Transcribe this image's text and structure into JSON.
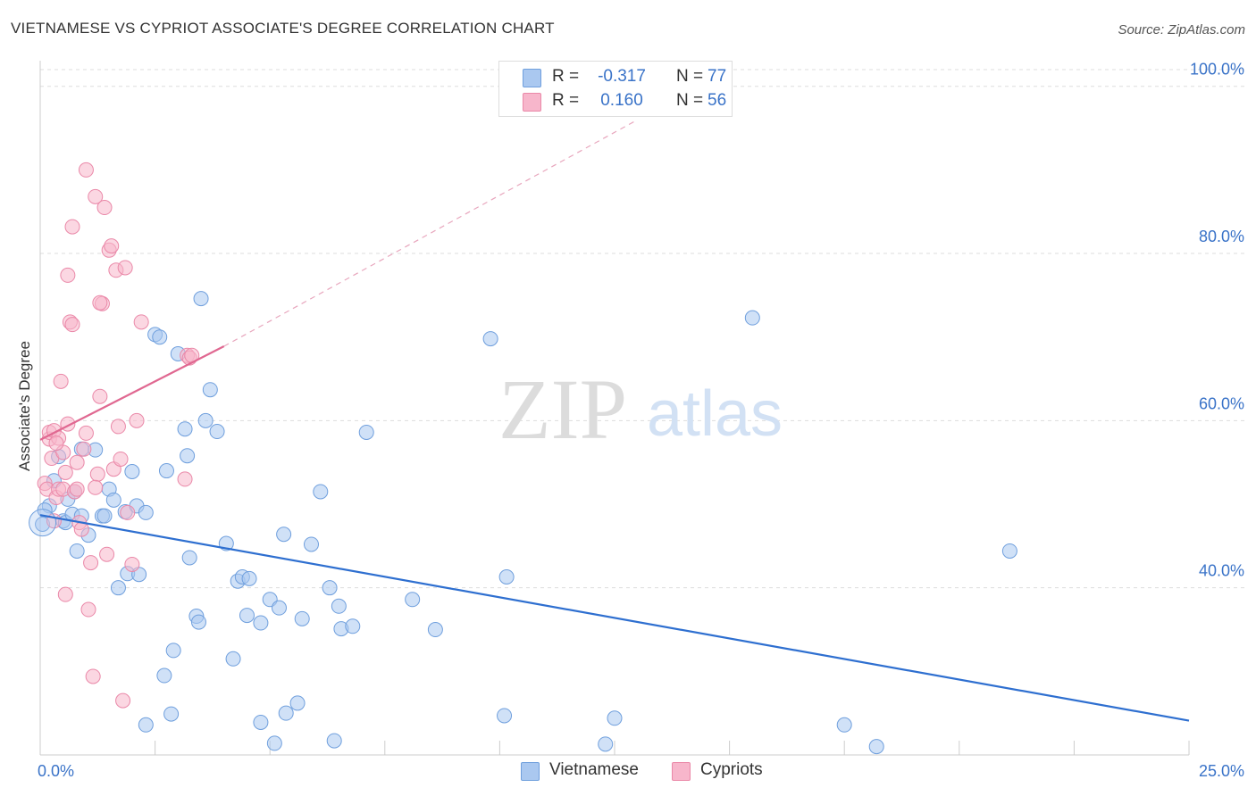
{
  "header": {
    "title": "VIETNAMESE VS CYPRIOT ASSOCIATE'S DEGREE CORRELATION CHART",
    "source": "Source: ZipAtlas.com"
  },
  "watermark": {
    "zip": "ZIP",
    "atlas": "atlas"
  },
  "legend": {
    "r_label": "R =",
    "n_label": "N =",
    "vietnamese": {
      "name": "Vietnamese",
      "r": "-0.317",
      "n": "77"
    },
    "cypriots": {
      "name": "Cypriots",
      "r": "0.160",
      "n": "56"
    }
  },
  "colors": {
    "blue_fill": "#aac8f0",
    "blue_stroke": "#6f9fdd",
    "blue_line": "#2e6fd0",
    "pink_fill": "#f7b6cb",
    "pink_stroke": "#ea88a8",
    "pink_line": "#e06891",
    "axis_label": "#3a73c8",
    "grid": "#dddddd"
  },
  "chart_data": {
    "type": "scatter",
    "title": "VIETNAMESE VS CYPRIOT ASSOCIATE'S DEGREE CORRELATION CHART",
    "xlabel": "",
    "ylabel": "Associate's Degree",
    "xlim": [
      0,
      25
    ],
    "ylim": [
      20,
      102
    ],
    "x_tick_labels": [
      {
        "value": 0,
        "label": "0.0%"
      },
      {
        "value": 25,
        "label": "25.0%"
      }
    ],
    "y_tick_labels": [
      {
        "value": 100,
        "label": "100.0%"
      },
      {
        "value": 80,
        "label": "80.0%"
      },
      {
        "value": 60,
        "label": "60.0%"
      },
      {
        "value": 40,
        "label": "40.0%"
      }
    ],
    "grid": true,
    "series": [
      {
        "name": "Vietnamese",
        "color": "blue",
        "points": [
          [
            0.05,
            47.6
          ],
          [
            0.2,
            49.8
          ],
          [
            0.3,
            52.8
          ],
          [
            0.4,
            55.7
          ],
          [
            0.5,
            48.0
          ],
          [
            0.55,
            47.8
          ],
          [
            0.6,
            50.6
          ],
          [
            0.7,
            48.8
          ],
          [
            0.75,
            51.5
          ],
          [
            0.8,
            44.4
          ],
          [
            0.9,
            48.6
          ],
          [
            0.9,
            56.6
          ],
          [
            1.05,
            46.3
          ],
          [
            1.2,
            56.5
          ],
          [
            1.35,
            48.6
          ],
          [
            1.4,
            48.6
          ],
          [
            1.5,
            51.8
          ],
          [
            1.6,
            50.5
          ],
          [
            1.7,
            40.0
          ],
          [
            1.85,
            49.1
          ],
          [
            1.9,
            41.7
          ],
          [
            2.0,
            53.9
          ],
          [
            2.1,
            49.8
          ],
          [
            2.15,
            41.6
          ],
          [
            2.3,
            49.0
          ],
          [
            2.3,
            23.6
          ],
          [
            2.5,
            70.3
          ],
          [
            2.6,
            70.0
          ],
          [
            2.7,
            29.5
          ],
          [
            2.75,
            54.0
          ],
          [
            2.85,
            24.9
          ],
          [
            2.9,
            32.5
          ],
          [
            3.0,
            68.0
          ],
          [
            3.15,
            59.0
          ],
          [
            3.2,
            55.8
          ],
          [
            3.25,
            43.6
          ],
          [
            3.4,
            36.6
          ],
          [
            3.45,
            35.9
          ],
          [
            3.5,
            74.6
          ],
          [
            3.6,
            60.0
          ],
          [
            3.7,
            63.7
          ],
          [
            3.85,
            58.7
          ],
          [
            4.05,
            45.3
          ],
          [
            4.2,
            31.5
          ],
          [
            4.3,
            40.8
          ],
          [
            4.4,
            41.3
          ],
          [
            4.5,
            36.7
          ],
          [
            4.55,
            41.1
          ],
          [
            4.8,
            23.9
          ],
          [
            4.8,
            35.8
          ],
          [
            5.0,
            38.6
          ],
          [
            5.1,
            21.4
          ],
          [
            5.2,
            37.6
          ],
          [
            5.3,
            46.4
          ],
          [
            5.35,
            25.0
          ],
          [
            5.6,
            26.2
          ],
          [
            5.7,
            36.3
          ],
          [
            5.9,
            45.2
          ],
          [
            6.1,
            51.5
          ],
          [
            6.3,
            40.0
          ],
          [
            6.4,
            21.7
          ],
          [
            6.5,
            37.8
          ],
          [
            6.55,
            35.1
          ],
          [
            6.8,
            35.4
          ],
          [
            7.1,
            58.6
          ],
          [
            8.1,
            38.6
          ],
          [
            8.6,
            35.0
          ],
          [
            9.8,
            69.8
          ],
          [
            10.1,
            24.7
          ],
          [
            10.15,
            41.3
          ],
          [
            12.3,
            21.3
          ],
          [
            12.5,
            24.4
          ],
          [
            15.5,
            72.3
          ],
          [
            17.5,
            23.6
          ],
          [
            18.2,
            21.0
          ],
          [
            21.1,
            44.4
          ],
          [
            0.1,
            49.3
          ]
        ],
        "trend": {
          "x0": 0,
          "y0": 48.7,
          "x1": 25,
          "y1": 24.1
        }
      },
      {
        "name": "Cypriots",
        "color": "pink",
        "points": [
          [
            0.1,
            52.5
          ],
          [
            0.15,
            51.8
          ],
          [
            0.2,
            57.8
          ],
          [
            0.2,
            58.6
          ],
          [
            0.25,
            55.5
          ],
          [
            0.3,
            58.8
          ],
          [
            0.35,
            50.8
          ],
          [
            0.4,
            51.8
          ],
          [
            0.4,
            57.9
          ],
          [
            0.45,
            64.7
          ],
          [
            0.5,
            56.2
          ],
          [
            0.5,
            51.8
          ],
          [
            0.55,
            39.2
          ],
          [
            0.55,
            53.8
          ],
          [
            0.6,
            77.4
          ],
          [
            0.65,
            71.8
          ],
          [
            0.7,
            71.5
          ],
          [
            0.7,
            83.2
          ],
          [
            0.75,
            51.5
          ],
          [
            0.8,
            51.8
          ],
          [
            0.85,
            47.8
          ],
          [
            0.9,
            47.0
          ],
          [
            0.95,
            56.6
          ],
          [
            1.0,
            90.0
          ],
          [
            1.05,
            37.4
          ],
          [
            1.1,
            43.0
          ],
          [
            1.15,
            29.4
          ],
          [
            1.2,
            86.8
          ],
          [
            1.25,
            53.6
          ],
          [
            1.3,
            62.9
          ],
          [
            1.35,
            74.0
          ],
          [
            1.4,
            85.5
          ],
          [
            1.45,
            44.0
          ],
          [
            1.5,
            80.4
          ],
          [
            1.55,
            80.9
          ],
          [
            1.6,
            54.2
          ],
          [
            1.65,
            78.0
          ],
          [
            1.7,
            59.3
          ],
          [
            1.75,
            55.4
          ],
          [
            1.8,
            26.5
          ],
          [
            1.85,
            78.3
          ],
          [
            1.9,
            49.0
          ],
          [
            2.0,
            42.8
          ],
          [
            2.1,
            60.0
          ],
          [
            2.2,
            71.8
          ],
          [
            3.15,
            53.0
          ],
          [
            3.2,
            67.8
          ],
          [
            3.25,
            67.5
          ],
          [
            3.3,
            67.8
          ],
          [
            0.3,
            48.0
          ],
          [
            0.35,
            57.3
          ],
          [
            0.6,
            59.6
          ],
          [
            0.8,
            55.0
          ],
          [
            1.0,
            58.5
          ],
          [
            1.2,
            52.0
          ],
          [
            1.3,
            74.1
          ]
        ],
        "trend": {
          "x0": 0,
          "y0": 57.7,
          "x1": 4.0,
          "y1": 68.9
        },
        "trend_extension": {
          "x0": 4.0,
          "y0": 68.9,
          "x1": 13.0,
          "y1": 96.0
        }
      }
    ]
  }
}
